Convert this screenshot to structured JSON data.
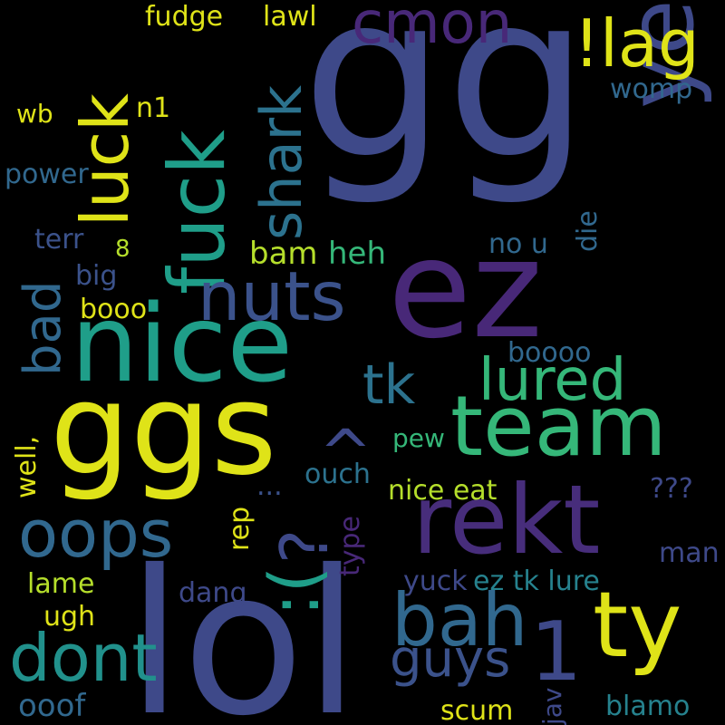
{
  "background": "#000000",
  "palette": {
    "yellow": "#dfe318",
    "lime": "#b5de2b",
    "green": "#6ece58",
    "teal": "#35b779",
    "cyan": "#1f9e89",
    "blue": "#26828e",
    "steel": "#31688e",
    "indigo": "#3e4989",
    "purple": "#482878",
    "darkpurple": "#440154"
  },
  "words": [
    {
      "text": "gg",
      "color": "#3e4989"
    },
    {
      "text": "lol",
      "color": "#3e4989"
    },
    {
      "text": "ez",
      "color": "#482878"
    },
    {
      "text": "nice",
      "color": "#1f9e89"
    },
    {
      "text": "ggs",
      "color": "#dfe318"
    },
    {
      "text": "team",
      "color": "#35b779"
    },
    {
      "text": "rekt",
      "color": "#472d7b"
    },
    {
      "text": "yeah",
      "color": "#3e4989"
    },
    {
      "text": "luck",
      "color": "#dfe318"
    },
    {
      "text": "fuck",
      "color": "#1f9e89"
    },
    {
      "text": "ty",
      "color": "#dfe318"
    },
    {
      "text": "nuts",
      "color": "#3b528b"
    },
    {
      "text": "oops",
      "color": "#31688e"
    },
    {
      "text": "bah",
      "color": "#31688e"
    },
    {
      "text": "!lag",
      "color": "#dfe318"
    },
    {
      "text": "cmon",
      "color": "#482878"
    },
    {
      "text": "shark",
      "color": "#2c728e"
    },
    {
      "text": ":(",
      "color": "#1f9e89"
    },
    {
      "text": "?",
      "color": "#3e4989"
    },
    {
      "text": "^",
      "color": "#3e4989"
    },
    {
      "text": "lured",
      "color": "#35b779"
    },
    {
      "text": "tk",
      "color": "#2c728e"
    },
    {
      "text": "dont",
      "color": "#21918c"
    },
    {
      "text": "guys",
      "color": "#3b528b"
    },
    {
      "text": "1",
      "color": "#3e4989"
    },
    {
      "text": "bad",
      "color": "#31688e"
    },
    {
      "text": "fudge",
      "color": "#dfe318"
    },
    {
      "text": "lawl",
      "color": "#dfe318"
    },
    {
      "text": "wb",
      "color": "#dfe318"
    },
    {
      "text": "n1",
      "color": "#dfe318"
    },
    {
      "text": "womp",
      "color": "#31688e"
    },
    {
      "text": "power",
      "color": "#31688e"
    },
    {
      "text": "die",
      "color": "#31688e"
    },
    {
      "text": "terr",
      "color": "#3b528b"
    },
    {
      "text": "8",
      "color": "#b5de2b"
    },
    {
      "text": "bam",
      "color": "#b5de2b"
    },
    {
      "text": "heh",
      "color": "#35b779"
    },
    {
      "text": "no u",
      "color": "#31688e"
    },
    {
      "text": "big",
      "color": "#3b528b"
    },
    {
      "text": "booo",
      "color": "#dfe318"
    },
    {
      "text": "boooo",
      "color": "#31688e"
    },
    {
      "text": "well,",
      "color": "#dfe318"
    },
    {
      "text": "pew",
      "color": "#35b779"
    },
    {
      "text": "ouch",
      "color": "#2c728e"
    },
    {
      "text": "...",
      "color": "#3b528b"
    },
    {
      "text": "nice eat",
      "color": "#b5de2b"
    },
    {
      "text": "???",
      "color": "#3e4989"
    },
    {
      "text": "rep",
      "color": "#dfe318"
    },
    {
      "text": "type",
      "color": "#482878"
    },
    {
      "text": "man",
      "color": "#3e4989"
    },
    {
      "text": "lame",
      "color": "#b5de2b"
    },
    {
      "text": "yuck",
      "color": "#3e4989"
    },
    {
      "text": "ez tk lure",
      "color": "#26828e"
    },
    {
      "text": "dang",
      "color": "#3e4989"
    },
    {
      "text": "ugh",
      "color": "#dfe318"
    },
    {
      "text": "jav",
      "color": "#3e4989"
    },
    {
      "text": "ooof",
      "color": "#31688e"
    },
    {
      "text": "scum",
      "color": "#dfe318"
    },
    {
      "text": "blamo",
      "color": "#26828e"
    }
  ]
}
